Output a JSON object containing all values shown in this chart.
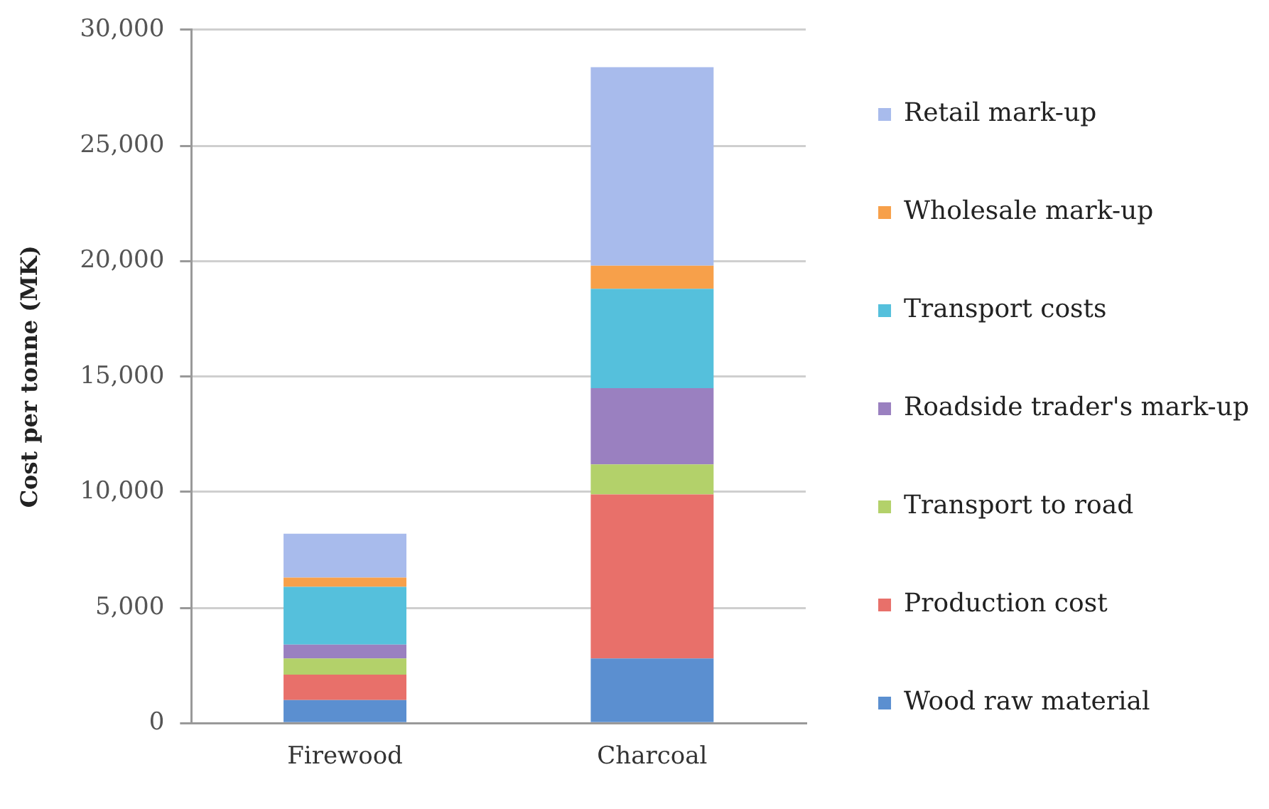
{
  "chart_data": {
    "type": "bar",
    "stacked": true,
    "ylabel": "Cost per tonne (MK)",
    "categories": [
      "Firewood",
      "Charcoal"
    ],
    "series": [
      {
        "name": "Wood raw material",
        "color": "#5b8fd0",
        "values": [
          1000,
          2800
        ]
      },
      {
        "name": "Production cost",
        "color": "#e8706a",
        "values": [
          1100,
          7100
        ]
      },
      {
        "name": "Transport to road",
        "color": "#b3d16a",
        "values": [
          700,
          1300
        ]
      },
      {
        "name": "Roadside trader's mark-up",
        "color": "#9a80c0",
        "values": [
          600,
          3300
        ]
      },
      {
        "name": "Transport costs",
        "color": "#55c0dc",
        "values": [
          2500,
          4300
        ]
      },
      {
        "name": "Wholesale mark-up",
        "color": "#f7a04a",
        "values": [
          400,
          1000
        ]
      },
      {
        "name": "Retail mark-up",
        "color": "#a8bbec",
        "values": [
          1900,
          8600
        ]
      }
    ],
    "ylim": [
      0,
      30000
    ],
    "yticks": [
      0,
      {
        "value": 5000,
        "label": "5,000"
      },
      {
        "value": 10000,
        "label": "10,000"
      },
      {
        "value": 15000,
        "label": "15,000"
      },
      {
        "value": 20000,
        "label": "20,000"
      },
      {
        "value": 25000,
        "label": "25,000"
      },
      {
        "value": 30000,
        "label": "30,000"
      }
    ],
    "grid": "y",
    "legend": "right"
  }
}
